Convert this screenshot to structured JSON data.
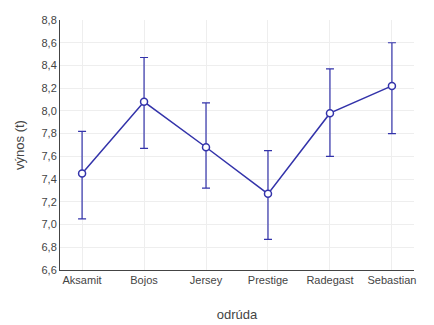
{
  "chart_data": {
    "type": "line",
    "categories": [
      "Aksamit",
      "Bojos",
      "Jersey",
      "Prestige",
      "Radegast",
      "Sebastian"
    ],
    "values": [
      7.45,
      8.08,
      7.68,
      7.27,
      7.98,
      8.22
    ],
    "err_low": [
      0.4,
      0.41,
      0.36,
      0.4,
      0.38,
      0.42
    ],
    "err_high": [
      0.37,
      0.39,
      0.39,
      0.38,
      0.39,
      0.38
    ],
    "xlabel": "odrúda",
    "ylabel": "výnos (t)",
    "ylim": [
      6.6,
      8.8
    ],
    "yticks": [
      {
        "value": 6.6,
        "label": "6,6"
      },
      {
        "value": 6.8,
        "label": "6,8"
      },
      {
        "value": 7.0,
        "label": "7,0"
      },
      {
        "value": 7.2,
        "label": "7,2"
      },
      {
        "value": 7.4,
        "label": "7,4"
      },
      {
        "value": 7.6,
        "label": "7,6"
      },
      {
        "value": 7.8,
        "label": "7,8"
      },
      {
        "value": 8.0,
        "label": "8,0"
      },
      {
        "value": 8.2,
        "label": "8,2"
      },
      {
        "value": 8.4,
        "label": "8,4"
      },
      {
        "value": 8.6,
        "label": "8,6"
      },
      {
        "value": 8.8,
        "label": "8,8"
      }
    ],
    "color": "#3333AA",
    "marker": "circle",
    "line_style": "solid",
    "grid": true
  }
}
